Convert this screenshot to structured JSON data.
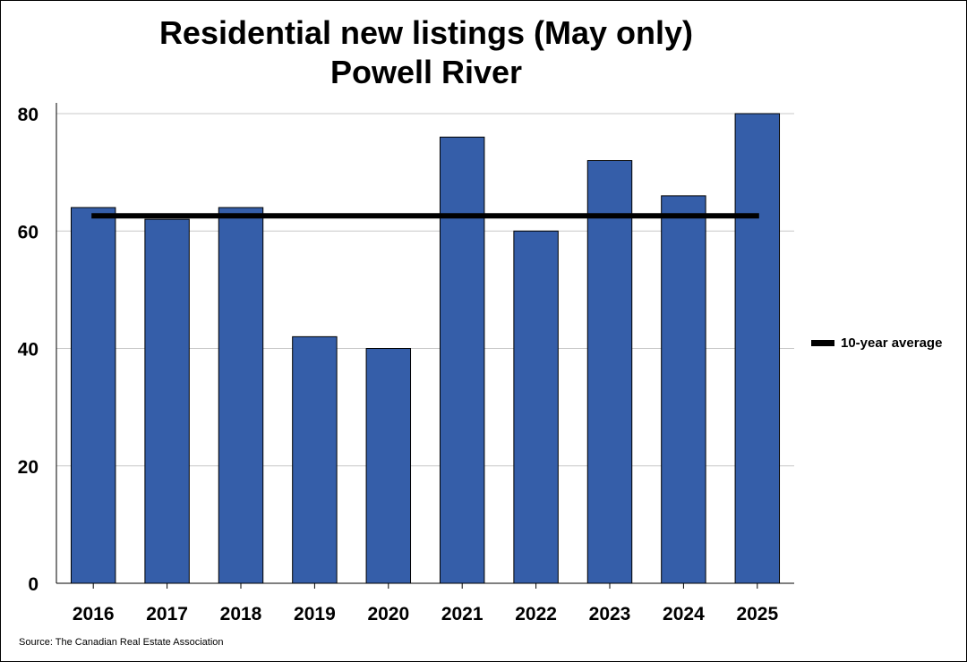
{
  "chart_data": {
    "type": "bar",
    "title": "Residential new listings (May only)",
    "subtitle": "Powell River",
    "categories": [
      "2016",
      "2017",
      "2018",
      "2019",
      "2020",
      "2021",
      "2022",
      "2023",
      "2024",
      "2025"
    ],
    "series": [
      {
        "name": "",
        "values": [
          64,
          62,
          64,
          42,
          40,
          76,
          60,
          72,
          66,
          80
        ],
        "color": "#355EA9"
      }
    ],
    "reference_line": {
      "name": "10-year average",
      "value": 62.6,
      "color": "#000000"
    },
    "ylim": [
      0,
      80
    ],
    "yticks": [
      0,
      20,
      40,
      60,
      80
    ],
    "grid": true,
    "legend_position": "right",
    "xlabel": "",
    "ylabel": ""
  },
  "source": "Source: The Canadian Real Estate Association"
}
